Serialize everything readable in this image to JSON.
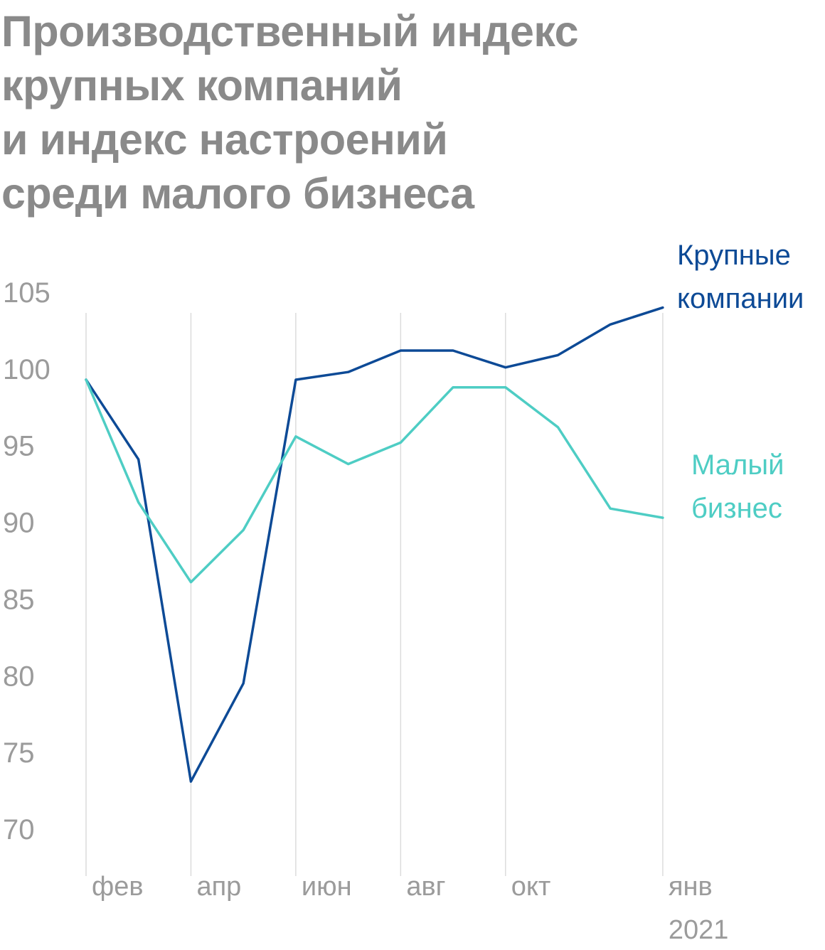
{
  "title_lines": [
    "Производственный индекс",
    "крупных компаний",
    "и индекс настроений",
    "среди малого бизнеса"
  ],
  "chart_data": {
    "type": "line",
    "title": "Производственный индекс крупных компаний и индекс настроений среди малого бизнеса",
    "ylim": [
      70,
      105
    ],
    "yticks": [
      70,
      75,
      80,
      85,
      90,
      95,
      100,
      105
    ],
    "x": [
      1,
      2,
      3,
      4,
      5,
      6,
      7,
      8,
      9,
      10,
      11,
      12
    ],
    "xtick_labels": [
      {
        "x": 1,
        "label": "фев"
      },
      {
        "x": 3,
        "label": "апр"
      },
      {
        "x": 5,
        "label": "июн"
      },
      {
        "x": 7,
        "label": "авг"
      },
      {
        "x": 9,
        "label": "окт"
      },
      {
        "x": 12,
        "label": "янв",
        "sublabel": "2021"
      }
    ],
    "grid": "vertical lines at labeled months",
    "series": [
      {
        "name": "Крупные компании",
        "label_lines": [
          "Крупные",
          "компании"
        ],
        "color": "#0d4a96",
        "values": [
          99.3,
          94.1,
          73.1,
          79.5,
          99.3,
          99.8,
          101.2,
          101.2,
          100.1,
          100.9,
          102.9,
          104.0
        ]
      },
      {
        "name": "Малый бизнес",
        "label_lines": [
          "Малый",
          "бизнес"
        ],
        "color": "#4ecdc4",
        "values": [
          99.3,
          91.3,
          86.1,
          89.5,
          95.6,
          93.8,
          95.2,
          98.8,
          98.8,
          96.2,
          90.9,
          90.3
        ]
      }
    ],
    "legend": "inline, right of line ends"
  }
}
